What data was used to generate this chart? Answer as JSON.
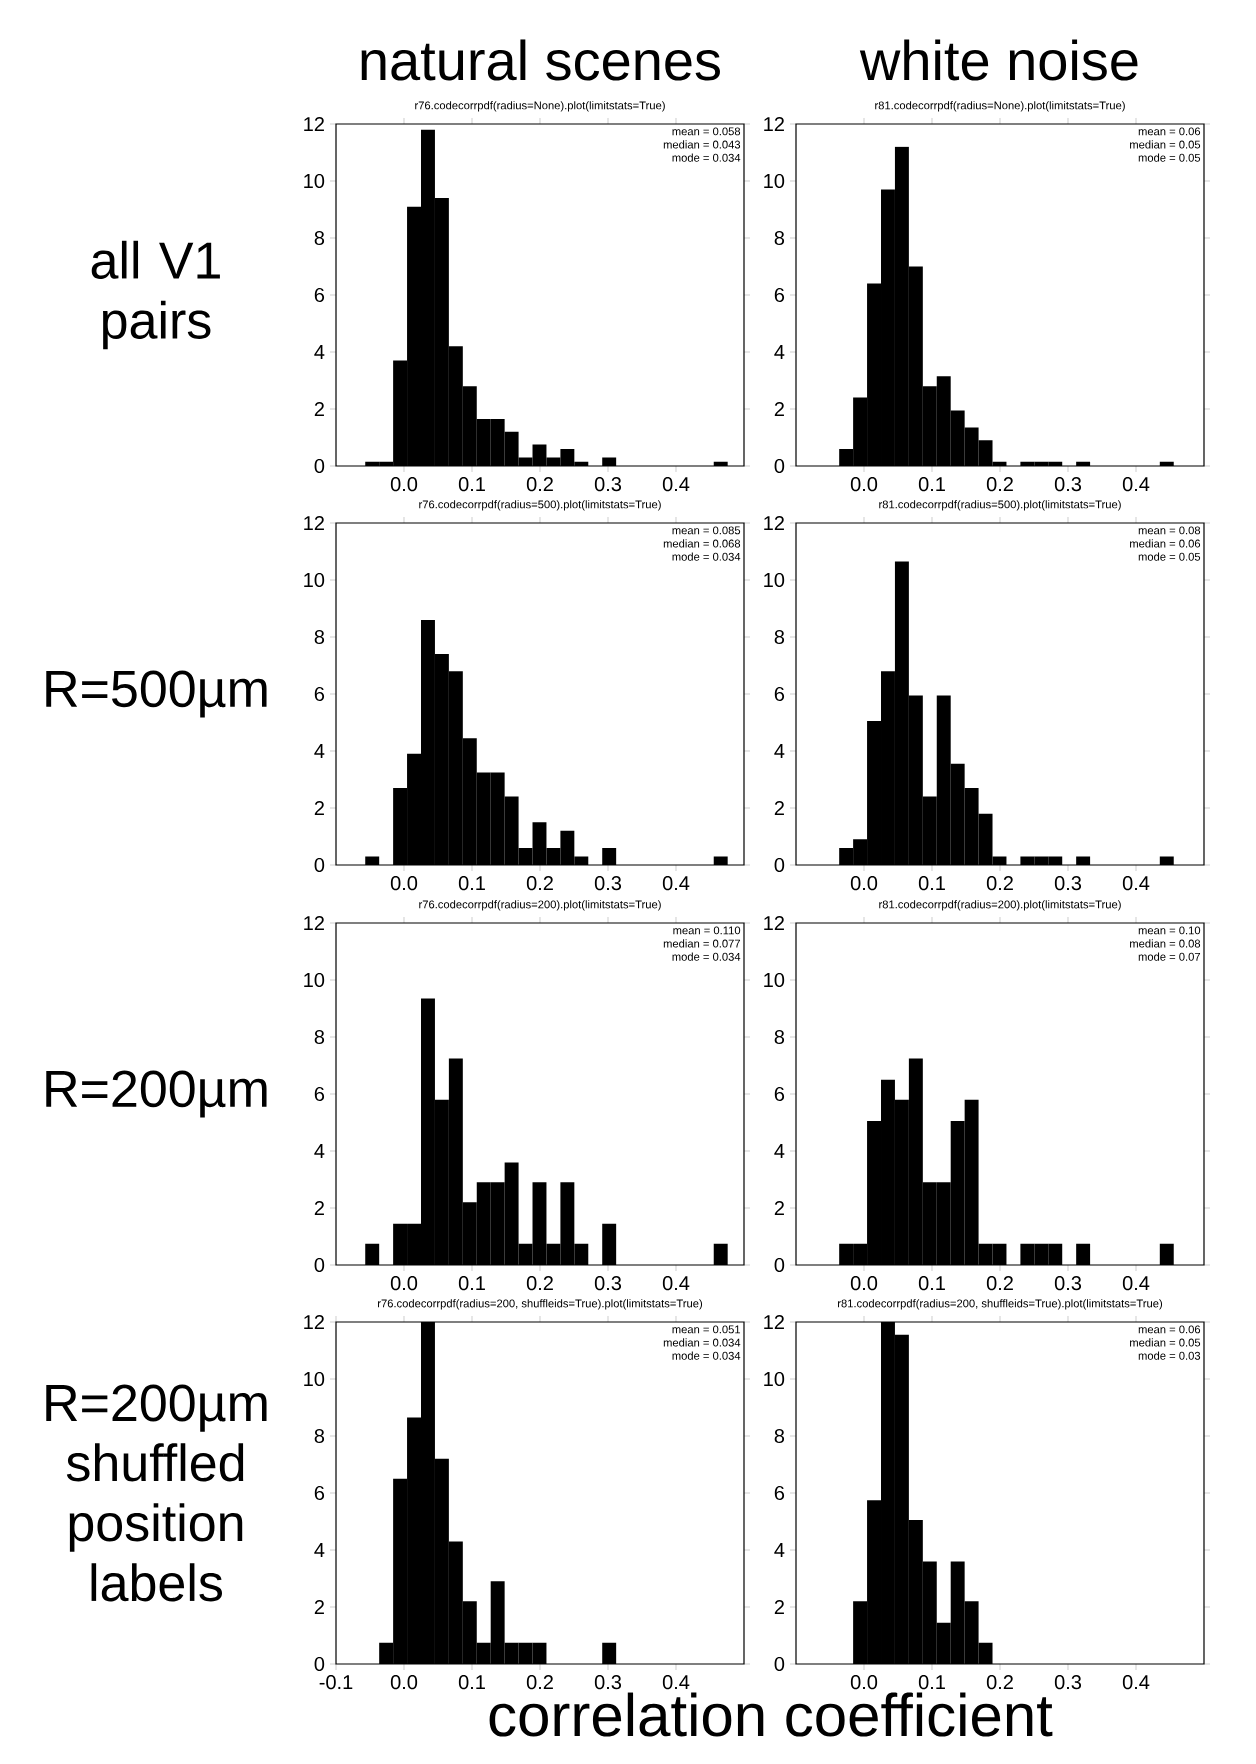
{
  "chart_data": [
    {
      "type": "histogram",
      "subtitle": "natural scenes",
      "ylabel": "all V1 pairs",
      "title": "r76.codecorrpdf(radius=None).plot(limitstats=True)",
      "annotations": [
        "mean = 0.058",
        "median = 0.043",
        "mode = 0.034"
      ],
      "color": "#000000",
      "bins": [
        -0.057,
        -0.0365,
        -0.016,
        0.0045,
        0.025,
        0.0455,
        0.066,
        0.0865,
        0.107,
        0.1275,
        0.148,
        0.1685,
        0.189,
        0.2095,
        0.23,
        0.2505,
        0.271,
        0.2915,
        0.312,
        0.3325,
        0.353,
        0.3735,
        0.394,
        0.4145,
        0.435,
        0.4555,
        0.476
      ],
      "values": [
        0.15,
        0.15,
        3.7,
        9.1,
        11.8,
        9.4,
        4.2,
        2.8,
        1.65,
        1.65,
        1.2,
        0.3,
        0.75,
        0.3,
        0.6,
        0.15,
        0,
        0.3,
        0,
        0,
        0,
        0,
        0,
        0,
        0,
        0.15
      ],
      "xlim": [
        -0.1,
        0.5
      ],
      "ylim": [
        0,
        12
      ],
      "xticks": [
        {
          "value": 0,
          "label": "0.0"
        },
        {
          "value": 0.1,
          "label": "0.1"
        },
        {
          "value": 0.2,
          "label": "0.2"
        },
        {
          "value": 0.3,
          "label": "0.3"
        },
        {
          "value": 0.4,
          "label": "0.4"
        }
      ],
      "yticks": [
        0,
        2,
        4,
        6,
        8,
        10,
        12
      ]
    },
    {
      "type": "histogram",
      "subtitle": "white noise",
      "title": "r81.codecorrpdf(radius=None).plot(limitstats=True)",
      "annotations": [
        "mean = 0.06",
        "median = 0.05",
        "mode = 0.05"
      ],
      "color": "#000000",
      "bins": [
        -0.057,
        -0.0365,
        -0.016,
        0.0045,
        0.025,
        0.0455,
        0.066,
        0.0865,
        0.107,
        0.1275,
        0.148,
        0.1685,
        0.189,
        0.2095,
        0.23,
        0.2505,
        0.271,
        0.2915,
        0.312,
        0.3325,
        0.353,
        0.3735,
        0.394,
        0.4145,
        0.435,
        0.4555,
        0.476
      ],
      "values": [
        0,
        0.6,
        2.4,
        6.4,
        9.7,
        11.2,
        7.0,
        2.8,
        3.15,
        1.95,
        1.35,
        0.9,
        0.15,
        0,
        0.15,
        0.15,
        0.15,
        0,
        0.15,
        0,
        0,
        0,
        0,
        0,
        0.15,
        0
      ],
      "xlim": [
        -0.1,
        0.5
      ],
      "ylim": [
        0,
        12
      ],
      "xticks": [
        {
          "value": 0,
          "label": "0.0"
        },
        {
          "value": 0.1,
          "label": "0.1"
        },
        {
          "value": 0.2,
          "label": "0.2"
        },
        {
          "value": 0.3,
          "label": "0.3"
        },
        {
          "value": 0.4,
          "label": "0.4"
        }
      ],
      "yticks": [
        0,
        2,
        4,
        6,
        8,
        10,
        12
      ]
    },
    {
      "type": "histogram",
      "ylabel": "R=500µm",
      "title": "r76.codecorrpdf(radius=500).plot(limitstats=True)",
      "annotations": [
        "mean = 0.085",
        "median = 0.068",
        "mode = 0.034"
      ],
      "color": "#000000",
      "bins": [
        -0.057,
        -0.0365,
        -0.016,
        0.0045,
        0.025,
        0.0455,
        0.066,
        0.0865,
        0.107,
        0.1275,
        0.148,
        0.1685,
        0.189,
        0.2095,
        0.23,
        0.2505,
        0.271,
        0.2915,
        0.312,
        0.3325,
        0.353,
        0.3735,
        0.394,
        0.4145,
        0.435,
        0.4555,
        0.476
      ],
      "values": [
        0.3,
        0,
        2.7,
        3.9,
        8.6,
        7.4,
        6.8,
        4.45,
        3.25,
        3.25,
        2.4,
        0.6,
        1.5,
        0.6,
        1.2,
        0.3,
        0,
        0.6,
        0,
        0,
        0,
        0,
        0,
        0,
        0,
        0.3
      ],
      "xlim": [
        -0.1,
        0.5
      ],
      "ylim": [
        0,
        12
      ],
      "xticks": [
        {
          "value": 0,
          "label": "0.0"
        },
        {
          "value": 0.1,
          "label": "0.1"
        },
        {
          "value": 0.2,
          "label": "0.2"
        },
        {
          "value": 0.3,
          "label": "0.3"
        },
        {
          "value": 0.4,
          "label": "0.4"
        }
      ],
      "yticks": [
        0,
        2,
        4,
        6,
        8,
        10,
        12
      ]
    },
    {
      "type": "histogram",
      "title": "r81.codecorrpdf(radius=500).plot(limitstats=True)",
      "annotations": [
        "mean = 0.08",
        "median = 0.06",
        "mode = 0.05"
      ],
      "color": "#000000",
      "bins": [
        -0.057,
        -0.0365,
        -0.016,
        0.0045,
        0.025,
        0.0455,
        0.066,
        0.0865,
        0.107,
        0.1275,
        0.148,
        0.1685,
        0.189,
        0.2095,
        0.23,
        0.2505,
        0.271,
        0.2915,
        0.312,
        0.3325,
        0.353,
        0.3735,
        0.394,
        0.4145,
        0.435,
        0.4555,
        0.476
      ],
      "values": [
        0,
        0.6,
        0.9,
        5.05,
        6.8,
        10.65,
        5.95,
        2.4,
        5.95,
        3.55,
        2.7,
        1.8,
        0.3,
        0,
        0.3,
        0.3,
        0.3,
        0,
        0.3,
        0,
        0,
        0,
        0,
        0,
        0.3,
        0
      ],
      "xlim": [
        -0.1,
        0.5
      ],
      "ylim": [
        0,
        12
      ],
      "xticks": [
        {
          "value": 0,
          "label": "0.0"
        },
        {
          "value": 0.1,
          "label": "0.1"
        },
        {
          "value": 0.2,
          "label": "0.2"
        },
        {
          "value": 0.3,
          "label": "0.3"
        },
        {
          "value": 0.4,
          "label": "0.4"
        }
      ],
      "yticks": [
        0,
        2,
        4,
        6,
        8,
        10,
        12
      ]
    },
    {
      "type": "histogram",
      "ylabel": "R=200µm",
      "title": "r76.codecorrpdf(radius=200).plot(limitstats=True)",
      "annotations": [
        "mean = 0.110",
        "median = 0.077",
        "mode = 0.034"
      ],
      "color": "#000000",
      "bins": [
        -0.057,
        -0.0365,
        -0.016,
        0.0045,
        0.025,
        0.0455,
        0.066,
        0.0865,
        0.107,
        0.1275,
        0.148,
        0.1685,
        0.189,
        0.2095,
        0.23,
        0.2505,
        0.271,
        0.2915,
        0.312,
        0.3325,
        0.353,
        0.3735,
        0.394,
        0.4145,
        0.435,
        0.4555,
        0.476
      ],
      "values": [
        0.75,
        0,
        1.45,
        1.45,
        9.35,
        5.8,
        7.25,
        2.2,
        2.9,
        2.9,
        3.6,
        0.75,
        2.9,
        0.75,
        2.9,
        0.75,
        0,
        1.45,
        0,
        0,
        0,
        0,
        0,
        0,
        0,
        0.75
      ],
      "xlim": [
        -0.1,
        0.5
      ],
      "ylim": [
        0,
        12
      ],
      "xticks": [
        {
          "value": 0,
          "label": "0.0"
        },
        {
          "value": 0.1,
          "label": "0.1"
        },
        {
          "value": 0.2,
          "label": "0.2"
        },
        {
          "value": 0.3,
          "label": "0.3"
        },
        {
          "value": 0.4,
          "label": "0.4"
        }
      ],
      "yticks": [
        0,
        2,
        4,
        6,
        8,
        10,
        12
      ]
    },
    {
      "type": "histogram",
      "title": "r81.codecorrpdf(radius=200).plot(limitstats=True)",
      "annotations": [
        "mean = 0.10",
        "median = 0.08",
        "mode = 0.07"
      ],
      "color": "#000000",
      "bins": [
        -0.057,
        -0.0365,
        -0.016,
        0.0045,
        0.025,
        0.0455,
        0.066,
        0.0865,
        0.107,
        0.1275,
        0.148,
        0.1685,
        0.189,
        0.2095,
        0.23,
        0.2505,
        0.271,
        0.2915,
        0.312,
        0.3325,
        0.353,
        0.3735,
        0.394,
        0.4145,
        0.435,
        0.4555,
        0.476
      ],
      "values": [
        0,
        0.75,
        0.75,
        5.05,
        6.5,
        5.8,
        7.25,
        2.9,
        2.9,
        5.05,
        5.8,
        0.75,
        0.75,
        0,
        0.75,
        0.75,
        0.75,
        0,
        0.75,
        0,
        0,
        0,
        0,
        0,
        0.75,
        0
      ],
      "xlim": [
        -0.1,
        0.5
      ],
      "ylim": [
        0,
        12
      ],
      "xticks": [
        {
          "value": 0,
          "label": "0.0"
        },
        {
          "value": 0.1,
          "label": "0.1"
        },
        {
          "value": 0.2,
          "label": "0.2"
        },
        {
          "value": 0.3,
          "label": "0.3"
        },
        {
          "value": 0.4,
          "label": "0.4"
        }
      ],
      "yticks": [
        0,
        2,
        4,
        6,
        8,
        10,
        12
      ]
    },
    {
      "type": "histogram",
      "ylabel": "R=200µm shuffled position labels",
      "xlabel": "correlation coefficient",
      "title": "r76.codecorrpdf(radius=200, shuffleids=True).plot(limitstats=True)",
      "annotations": [
        "mean = 0.051",
        "median = 0.034",
        "mode = 0.034"
      ],
      "color": "#000000",
      "bins": [
        -0.057,
        -0.0365,
        -0.016,
        0.0045,
        0.025,
        0.0455,
        0.066,
        0.0865,
        0.107,
        0.1275,
        0.148,
        0.1685,
        0.189,
        0.2095,
        0.23,
        0.2505,
        0.271,
        0.2915,
        0.312,
        0.3325,
        0.353,
        0.3735,
        0.394,
        0.4145,
        0.435,
        0.4555,
        0.476
      ],
      "values": [
        0,
        0.75,
        6.5,
        8.65,
        12,
        7.2,
        4.3,
        2.2,
        0.75,
        2.9,
        0.75,
        0.75,
        0.75,
        0,
        0,
        0,
        0,
        0.75,
        0,
        0,
        0,
        0,
        0,
        0,
        0,
        0
      ],
      "xlim": [
        -0.1,
        0.5
      ],
      "ylim": [
        0,
        12
      ],
      "xticks": [
        {
          "value": -0.1,
          "label": "-0.1"
        },
        {
          "value": 0,
          "label": "0.0"
        },
        {
          "value": 0.1,
          "label": "0.1"
        },
        {
          "value": 0.2,
          "label": "0.2"
        },
        {
          "value": 0.3,
          "label": "0.3"
        },
        {
          "value": 0.4,
          "label": "0.4"
        }
      ],
      "yticks": [
        0,
        2,
        4,
        6,
        8,
        10,
        12
      ]
    },
    {
      "type": "histogram",
      "title": "r81.codecorrpdf(radius=200, shuffleids=True).plot(limitstats=True)",
      "annotations": [
        "mean = 0.06",
        "median = 0.05",
        "mode = 0.03"
      ],
      "color": "#000000",
      "bins": [
        -0.057,
        -0.0365,
        -0.016,
        0.0045,
        0.025,
        0.0455,
        0.066,
        0.0865,
        0.107,
        0.1275,
        0.148,
        0.1685,
        0.189,
        0.2095,
        0.23,
        0.2505,
        0.271,
        0.2915,
        0.312,
        0.3325,
        0.353,
        0.3735,
        0.394,
        0.4145,
        0.435,
        0.4555,
        0.476
      ],
      "values": [
        0,
        0,
        2.2,
        5.75,
        12,
        11.55,
        5.05,
        3.6,
        1.45,
        3.6,
        2.2,
        0.75,
        0,
        0,
        0,
        0,
        0,
        0,
        0,
        0,
        0,
        0,
        0,
        0,
        0,
        0
      ],
      "xlim": [
        -0.1,
        0.5
      ],
      "ylim": [
        0,
        12
      ],
      "xticks": [
        {
          "value": 0,
          "label": "0.0"
        },
        {
          "value": 0.1,
          "label": "0.1"
        },
        {
          "value": 0.2,
          "label": "0.2"
        },
        {
          "value": 0.3,
          "label": "0.3"
        },
        {
          "value": 0.4,
          "label": "0.4"
        }
      ],
      "yticks": [
        0,
        2,
        4,
        6,
        8,
        10,
        12
      ]
    }
  ]
}
